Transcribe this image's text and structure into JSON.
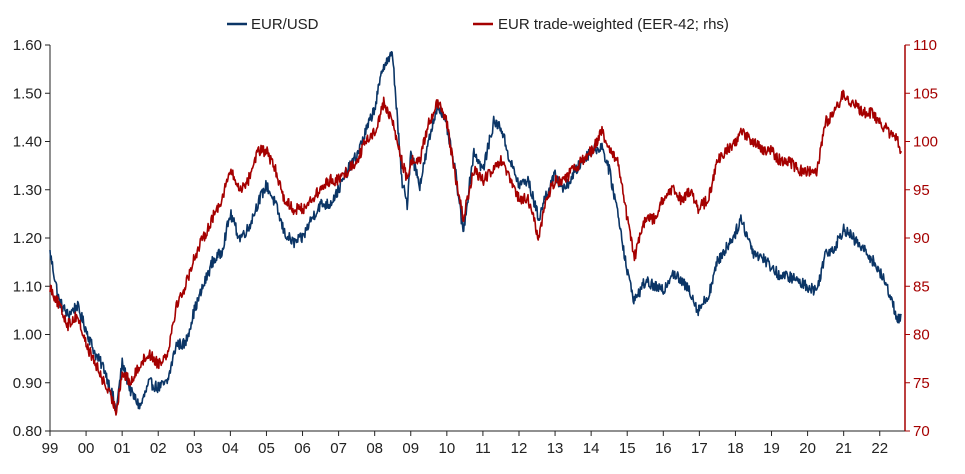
{
  "chart_data": {
    "type": "line",
    "title": "",
    "xlabel": "",
    "ylabel": "",
    "x_ticks": [
      "99",
      "00",
      "01",
      "02",
      "03",
      "04",
      "05",
      "06",
      "07",
      "08",
      "09",
      "10",
      "11",
      "12",
      "13",
      "14",
      "15",
      "16",
      "17",
      "18",
      "19",
      "20",
      "21",
      "22"
    ],
    "x_range": [
      1999.0,
      2022.7
    ],
    "left_axis": {
      "ylim": [
        0.8,
        1.6
      ],
      "ticks": [
        "0.80",
        "0.90",
        "1.00",
        "1.10",
        "1.20",
        "1.30",
        "1.40",
        "1.50",
        "1.60"
      ]
    },
    "right_axis": {
      "ylim": [
        70,
        110
      ],
      "ticks": [
        "70",
        "75",
        "80",
        "85",
        "90",
        "95",
        "100",
        "105",
        "110"
      ],
      "color": "#a50000"
    },
    "legend_position": "top",
    "grid": false,
    "series": [
      {
        "name": "EUR/USD",
        "axis": "left",
        "color": "#0b3566",
        "x": [
          1999.0,
          1999.25,
          1999.5,
          1999.75,
          2000.0,
          2000.25,
          2000.5,
          2000.75,
          2000.83,
          2001.0,
          2001.25,
          2001.5,
          2001.75,
          2002.0,
          2002.25,
          2002.5,
          2002.75,
          2003.0,
          2003.25,
          2003.5,
          2003.75,
          2004.0,
          2004.25,
          2004.5,
          2004.75,
          2005.0,
          2005.25,
          2005.5,
          2005.75,
          2006.0,
          2006.25,
          2006.5,
          2006.75,
          2007.0,
          2007.25,
          2007.5,
          2007.75,
          2008.0,
          2008.25,
          2008.5,
          2008.75,
          2008.9,
          2009.0,
          2009.25,
          2009.5,
          2009.75,
          2010.0,
          2010.25,
          2010.45,
          2010.75,
          2011.0,
          2011.3,
          2011.5,
          2011.75,
          2012.0,
          2012.25,
          2012.55,
          2012.75,
          2013.0,
          2013.25,
          2013.5,
          2013.75,
          2014.0,
          2014.3,
          2014.5,
          2014.75,
          2015.0,
          2015.2,
          2015.5,
          2015.75,
          2016.0,
          2016.25,
          2016.5,
          2016.75,
          2016.95,
          2017.25,
          2017.5,
          2017.75,
          2018.0,
          2018.15,
          2018.5,
          2018.75,
          2019.0,
          2019.25,
          2019.5,
          2019.75,
          2020.0,
          2020.25,
          2020.5,
          2020.75,
          2021.0,
          2021.25,
          2021.5,
          2021.75,
          2022.0,
          2022.25,
          2022.5,
          2022.6
        ],
        "y": [
          1.17,
          1.07,
          1.04,
          1.06,
          1.01,
          0.96,
          0.93,
          0.87,
          0.84,
          0.94,
          0.88,
          0.85,
          0.9,
          0.89,
          0.9,
          0.98,
          0.98,
          1.05,
          1.1,
          1.15,
          1.17,
          1.25,
          1.2,
          1.22,
          1.27,
          1.31,
          1.27,
          1.21,
          1.19,
          1.2,
          1.24,
          1.27,
          1.27,
          1.3,
          1.34,
          1.37,
          1.42,
          1.47,
          1.56,
          1.58,
          1.32,
          1.27,
          1.38,
          1.31,
          1.4,
          1.48,
          1.43,
          1.33,
          1.21,
          1.38,
          1.34,
          1.44,
          1.43,
          1.36,
          1.31,
          1.32,
          1.24,
          1.29,
          1.33,
          1.3,
          1.33,
          1.36,
          1.38,
          1.39,
          1.34,
          1.25,
          1.13,
          1.07,
          1.11,
          1.1,
          1.09,
          1.13,
          1.11,
          1.09,
          1.05,
          1.08,
          1.15,
          1.18,
          1.21,
          1.24,
          1.17,
          1.16,
          1.14,
          1.12,
          1.12,
          1.11,
          1.1,
          1.09,
          1.17,
          1.18,
          1.22,
          1.2,
          1.18,
          1.16,
          1.13,
          1.09,
          1.03,
          1.04
        ]
      },
      {
        "name": "EUR trade-weighted (EER-42; rhs)",
        "axis": "right",
        "color": "#a50000",
        "x": [
          1999.0,
          1999.25,
          1999.5,
          1999.75,
          2000.0,
          2000.25,
          2000.5,
          2000.75,
          2000.83,
          2001.0,
          2001.25,
          2001.5,
          2001.75,
          2002.0,
          2002.25,
          2002.5,
          2002.75,
          2003.0,
          2003.25,
          2003.5,
          2003.75,
          2004.0,
          2004.25,
          2004.5,
          2004.75,
          2005.0,
          2005.25,
          2005.5,
          2005.75,
          2006.0,
          2006.25,
          2006.5,
          2006.75,
          2007.0,
          2007.25,
          2007.5,
          2007.75,
          2008.0,
          2008.25,
          2008.5,
          2008.75,
          2008.9,
          2009.0,
          2009.25,
          2009.5,
          2009.75,
          2010.0,
          2010.25,
          2010.45,
          2010.75,
          2011.0,
          2011.3,
          2011.5,
          2011.75,
          2012.0,
          2012.25,
          2012.55,
          2012.75,
          2013.0,
          2013.25,
          2013.5,
          2013.75,
          2014.0,
          2014.3,
          2014.5,
          2014.75,
          2015.0,
          2015.2,
          2015.5,
          2015.75,
          2016.0,
          2016.25,
          2016.5,
          2016.75,
          2016.95,
          2017.25,
          2017.5,
          2017.75,
          2018.0,
          2018.15,
          2018.5,
          2018.75,
          2019.0,
          2019.25,
          2019.5,
          2019.75,
          2020.0,
          2020.25,
          2020.5,
          2020.75,
          2021.0,
          2021.25,
          2021.5,
          2021.75,
          2022.0,
          2022.25,
          2022.5,
          2022.6
        ],
        "y": [
          85,
          83,
          81,
          82,
          79,
          77,
          75,
          73,
          72,
          76,
          75,
          77,
          78,
          77,
          78,
          83,
          85,
          88,
          90,
          92,
          94,
          97,
          95,
          96,
          99,
          99,
          97,
          94,
          93,
          93,
          94,
          95,
          96,
          96,
          97,
          98,
          100,
          101,
          104,
          102,
          98,
          96,
          98,
          98,
          102,
          104,
          102,
          96,
          92,
          97,
          96,
          97,
          98,
          96,
          94,
          94,
          90,
          94,
          96,
          96,
          97,
          98,
          99,
          101,
          99,
          98,
          92,
          88,
          92,
          92,
          94,
          95,
          94,
          95,
          93,
          94,
          98,
          99,
          100,
          101,
          100,
          99,
          99,
          98,
          98,
          97,
          97,
          97,
          102,
          103,
          105,
          104,
          103,
          103,
          102,
          101,
          100,
          99
        ]
      }
    ]
  }
}
